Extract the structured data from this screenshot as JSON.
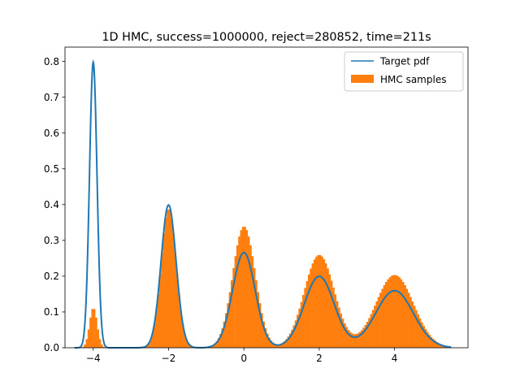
{
  "chart_data": {
    "type": "histogram+line",
    "title": "1D HMC, success=1000000, reject=280852, time=211s",
    "xlabel": "",
    "ylabel": "",
    "xlim": [
      -4.75,
      5.95
    ],
    "ylim": [
      0,
      0.84
    ],
    "xticks": [
      -4,
      -2,
      0,
      2,
      4
    ],
    "xtick_labels": [
      "−4",
      "−2",
      "0",
      "2",
      "4"
    ],
    "yticks": [
      0.0,
      0.1,
      0.2,
      0.3,
      0.4,
      0.5,
      0.6,
      0.7,
      0.8
    ],
    "ytick_labels": [
      "0.0",
      "0.1",
      "0.2",
      "0.3",
      "0.4",
      "0.5",
      "0.6",
      "0.7",
      "0.8"
    ],
    "legend_position": "top-right",
    "series": [
      {
        "name": "Target pdf",
        "kind": "line",
        "color": "#1f77b4",
        "x_range": [
          -4.5,
          5.5
        ],
        "components": [
          {
            "mean": -4,
            "sd": 0.1,
            "weight": 0.2
          },
          {
            "mean": -2,
            "sd": 0.2,
            "weight": 0.2
          },
          {
            "mean": 0,
            "sd": 0.3,
            "weight": 0.2
          },
          {
            "mean": 2,
            "sd": 0.4,
            "weight": 0.2
          },
          {
            "mean": 4,
            "sd": 0.5,
            "weight": 0.2
          }
        ]
      },
      {
        "name": "HMC samples",
        "kind": "histogram",
        "color": "#ff7f0e",
        "bin_width": 0.05,
        "x_range": [
          -4.3,
          5.5
        ],
        "components": [
          {
            "mean": -4,
            "sd": 0.1,
            "weight": 0.028
          },
          {
            "mean": -2,
            "sd": 0.2,
            "weight": 0.195
          },
          {
            "mean": 0,
            "sd": 0.3,
            "weight": 0.255
          },
          {
            "mean": 2,
            "sd": 0.4,
            "weight": 0.26
          },
          {
            "mean": 4,
            "sd": 0.5,
            "weight": 0.255
          }
        ]
      }
    ]
  }
}
